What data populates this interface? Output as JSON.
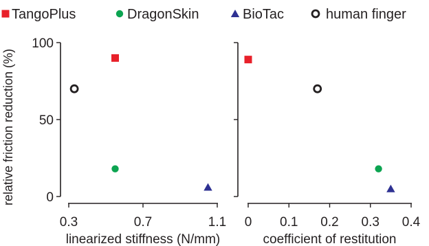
{
  "legend": {
    "items": [
      {
        "label": "TangoPlus",
        "marker": "square",
        "color": "#e8202a"
      },
      {
        "label": "DragonSkin",
        "marker": "circle",
        "color": "#0ca451"
      },
      {
        "label": "BioTac",
        "marker": "triangle",
        "color": "#2e3192"
      },
      {
        "label": "human  finger",
        "marker": "open-circle",
        "color": "#231f20"
      }
    ]
  },
  "chart_data": [
    {
      "type": "scatter",
      "title": "",
      "xlabel": "linearized stiffness (N/mm)",
      "ylabel": "relative friction reduction (%)",
      "xlim": [
        0.3,
        1.1
      ],
      "ylim": [
        0,
        100
      ],
      "xticks": [
        "0.3",
        "0.7",
        "1.1"
      ],
      "yticks": [
        "0",
        "50",
        "100"
      ],
      "series": [
        {
          "name": "TangoPlus",
          "x": [
            0.55
          ],
          "y": [
            90
          ]
        },
        {
          "name": "DragonSkin",
          "x": [
            0.55
          ],
          "y": [
            18
          ]
        },
        {
          "name": "BioTac",
          "x": [
            1.05
          ],
          "y": [
            6
          ]
        },
        {
          "name": "human  finger",
          "x": [
            0.33
          ],
          "y": [
            70
          ]
        }
      ]
    },
    {
      "type": "scatter",
      "title": "",
      "xlabel": "coefficient of restitution",
      "ylabel": "",
      "xlim": [
        0,
        0.4
      ],
      "ylim": [
        0,
        100
      ],
      "xticks": [
        "0",
        "0.1",
        "0.2",
        "0.3",
        "0.4"
      ],
      "yticks": [
        "",
        "",
        ""
      ],
      "series": [
        {
          "name": "TangoPlus",
          "x": [
            0.0
          ],
          "y": [
            89
          ]
        },
        {
          "name": "DragonSkin",
          "x": [
            0.32
          ],
          "y": [
            18
          ]
        },
        {
          "name": "BioTac",
          "x": [
            0.35
          ],
          "y": [
            5
          ]
        },
        {
          "name": "human  finger",
          "x": [
            0.17
          ],
          "y": [
            70
          ]
        }
      ]
    }
  ]
}
